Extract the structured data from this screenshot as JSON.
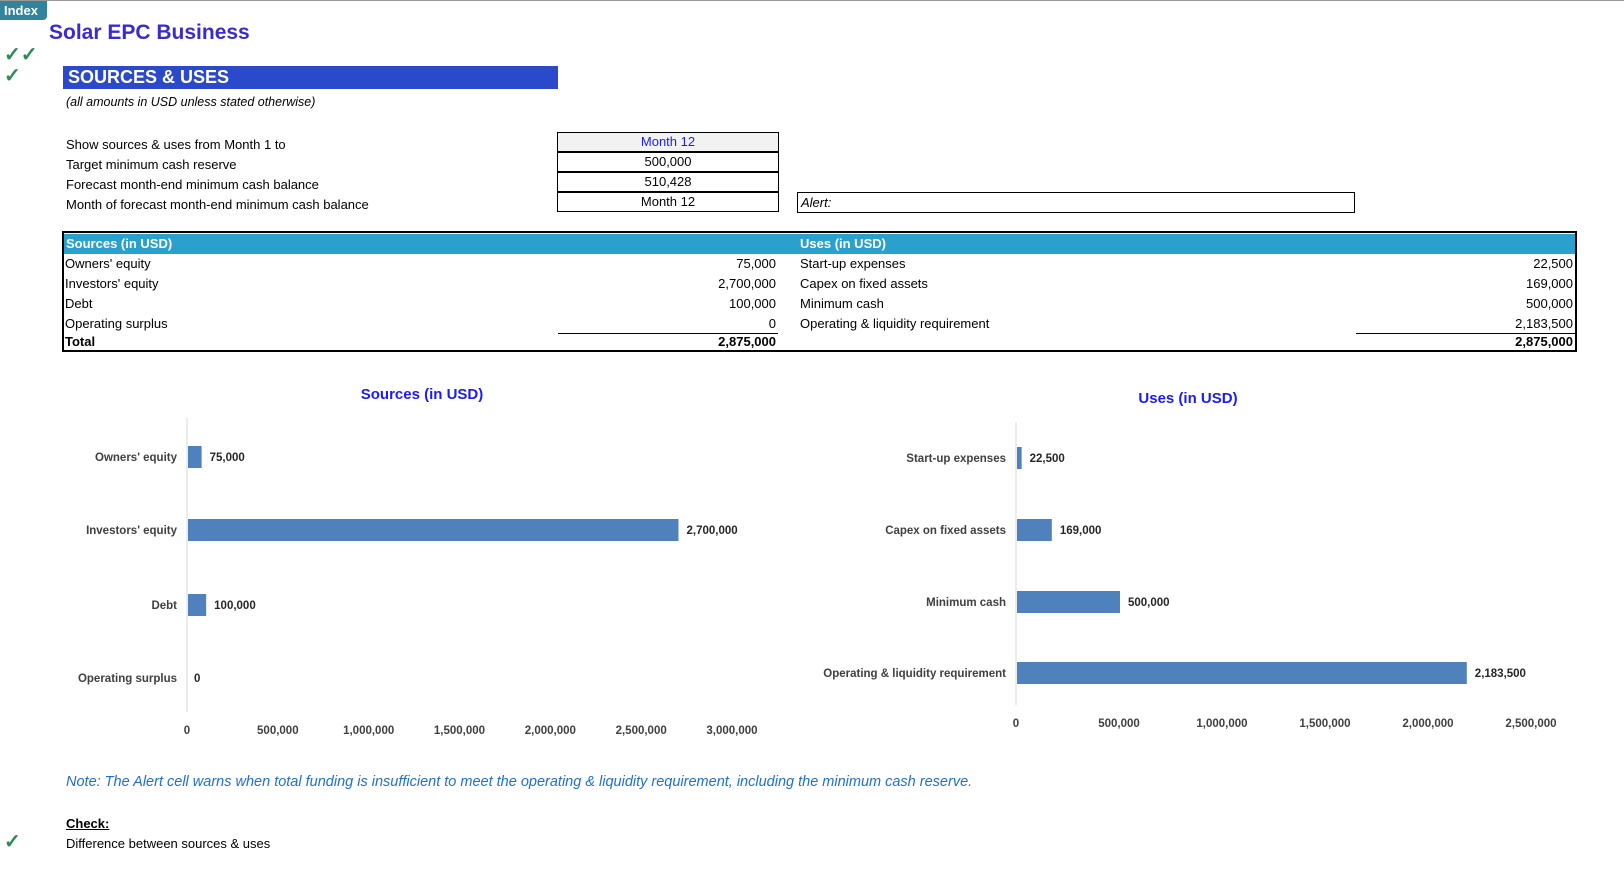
{
  "index_tab": "Index",
  "title": "Solar EPC Business",
  "section_header": "SOURCES & USES",
  "subtitle": "(all amounts in USD unless stated otherwise)",
  "inputs": [
    {
      "label": "Show sources & uses from Month 1 to",
      "value": "Month 12"
    },
    {
      "label": "Target minimum cash reserve",
      "value": "500,000"
    },
    {
      "label": "Forecast month-end minimum cash balance",
      "value": "510,428"
    },
    {
      "label": "Month of forecast month-end minimum cash balance",
      "value": "Month 12"
    }
  ],
  "alert_label": "Alert:",
  "table": {
    "sources_header": "Sources (in USD)",
    "uses_header": "Uses (in USD)",
    "sources": [
      {
        "label": "Owners' equity",
        "value": "75,000"
      },
      {
        "label": "Investors' equity",
        "value": "2,700,000"
      },
      {
        "label": "Debt",
        "value": "100,000"
      },
      {
        "label": "Operating surplus",
        "value": "0"
      }
    ],
    "uses": [
      {
        "label": "Start-up expenses",
        "value": "22,500"
      },
      {
        "label": "Capex on fixed assets",
        "value": "169,000"
      },
      {
        "label": "Minimum cash",
        "value": "500,000"
      },
      {
        "label": "Operating & liquidity requirement",
        "value": "2,183,500"
      }
    ],
    "total_label": "Total",
    "sources_total": "2,875,000",
    "uses_total": "2,875,000"
  },
  "chart_data": [
    {
      "type": "bar",
      "orientation": "horizontal",
      "title": "Sources (in USD)",
      "categories": [
        "Owners' equity",
        "Investors' equity",
        "Debt",
        "Operating surplus"
      ],
      "values": [
        75000,
        2700000,
        100000,
        0
      ],
      "data_labels": [
        "75,000",
        "2,700,000",
        "100,000",
        "0"
      ],
      "xlim": [
        0,
        3000000
      ],
      "ticks": [
        "0",
        "500,000",
        "1,000,000",
        "1,500,000",
        "2,000,000",
        "2,500,000",
        "3,000,000"
      ],
      "grid": false,
      "color": "#4f81bd"
    },
    {
      "type": "bar",
      "orientation": "horizontal",
      "title": "Uses (in USD)",
      "categories": [
        "Start-up expenses",
        "Capex on fixed assets",
        "Minimum cash",
        "Operating & liquidity requirement"
      ],
      "values": [
        22500,
        169000,
        500000,
        2183500
      ],
      "data_labels": [
        "22,500",
        "169,000",
        "500,000",
        "2,183,500"
      ],
      "xlim": [
        0,
        2500000
      ],
      "ticks": [
        "0",
        "500,000",
        "1,000,000",
        "1,500,000",
        "2,000,000",
        "2,500,000"
      ],
      "grid": false,
      "color": "#4f81bd"
    }
  ],
  "note": "Note: The Alert cell warns when total funding is insufficient to meet the operating & liquidity requirement, including the minimum cash reserve.",
  "check": {
    "heading": "Check:",
    "label": "Difference between sources & uses"
  }
}
